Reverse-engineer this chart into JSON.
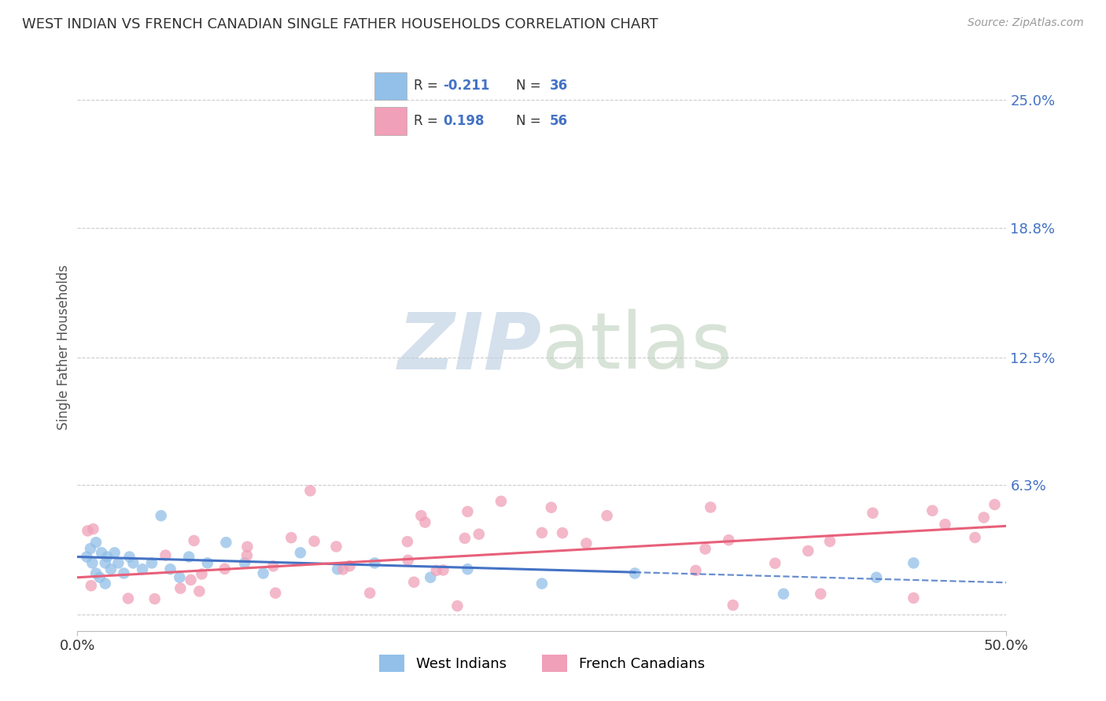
{
  "title": "WEST INDIAN VS FRENCH CANADIAN SINGLE FATHER HOUSEHOLDS CORRELATION CHART",
  "source": "Source: ZipAtlas.com",
  "ylabel": "Single Father Households",
  "y_tick_labels": [
    "6.3%",
    "12.5%",
    "18.8%",
    "25.0%"
  ],
  "y_tick_values": [
    0.063,
    0.125,
    0.188,
    0.25
  ],
  "x_min": 0.0,
  "x_max": 0.5,
  "y_min": -0.008,
  "y_max": 0.268,
  "legend_label1": "West Indians",
  "legend_label2": "French Canadians",
  "R1": "-0.211",
  "N1": "36",
  "R2": "0.198",
  "N2": "56",
  "color_blue": "#92C0E8",
  "color_pink": "#F0A0B8",
  "color_blue_line": "#4472C4",
  "color_pink_line": "#E8607A",
  "color_blue_text": "#4472C4",
  "color_dark_text": "#333333",
  "color_title": "#333333",
  "color_source": "#999999",
  "color_grid": "#CCCCCC",
  "wi_line_solid_end": 0.3,
  "wi_intercept": 0.028,
  "wi_slope": -0.025,
  "fc_intercept": 0.018,
  "fc_slope": 0.05
}
